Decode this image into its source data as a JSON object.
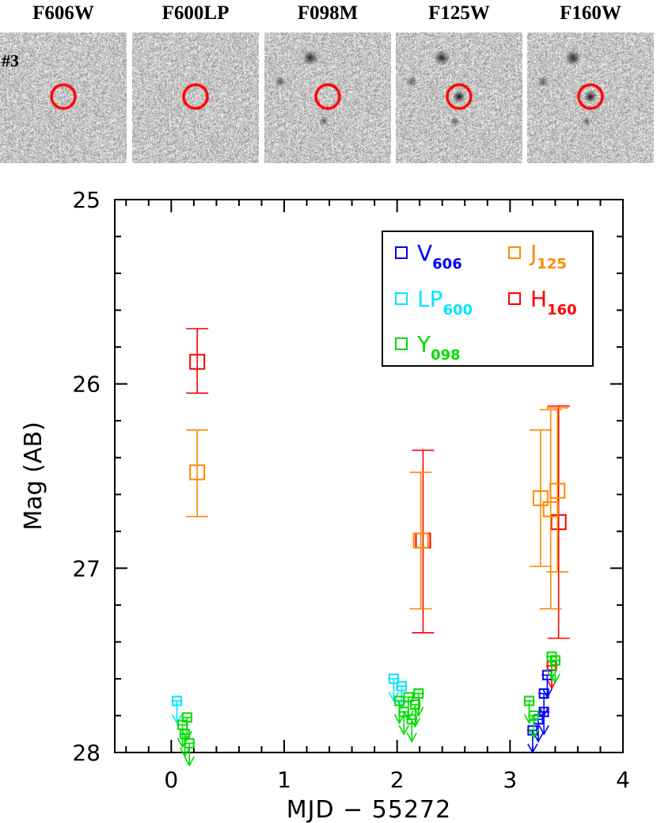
{
  "object_label": "#3",
  "stamps": [
    {
      "filter": "F606W",
      "detected": false
    },
    {
      "filter": "F600LP",
      "detected": false
    },
    {
      "filter": "F098M",
      "detected": false
    },
    {
      "filter": "F125W",
      "detected": true
    },
    {
      "filter": "F160W",
      "detected": true
    }
  ],
  "colors": {
    "marker_circle": "#ff0000",
    "V606": "#0000ff",
    "LP600": "#00e5ff",
    "Y098": "#00dd00",
    "J125": "#ff8800",
    "H160": "#ff0000"
  },
  "chart_data": {
    "type": "scatter",
    "xlabel": "MJD − 55272",
    "ylabel": "Mag (AB)",
    "xlim": [
      -0.5,
      4
    ],
    "ylim": [
      28,
      25
    ],
    "y_inverted": true,
    "xticks": [
      0,
      1,
      2,
      3,
      4
    ],
    "yticks": [
      25,
      26,
      27,
      28
    ],
    "legend": {
      "position": "top-right",
      "entries": [
        {
          "key": "V606",
          "base": "V",
          "sub": "606"
        },
        {
          "key": "J125",
          "base": "J",
          "sub": "125"
        },
        {
          "key": "LP600",
          "base": "LP",
          "sub": "600"
        },
        {
          "key": "H160",
          "base": "H",
          "sub": "160"
        },
        {
          "key": "Y098",
          "base": "Y",
          "sub": "098"
        }
      ]
    },
    "series": [
      {
        "name": "H160",
        "key": "H160",
        "points": [
          {
            "x": 0.23,
            "y": 25.88,
            "err": [
              25.7,
              26.05
            ]
          },
          {
            "x": 2.23,
            "y": 26.85,
            "err": [
              26.36,
              27.35
            ]
          },
          {
            "x": 3.43,
            "y": 26.75,
            "err": [
              26.12,
              27.38
            ]
          },
          {
            "x": 3.37,
            "y": 27.53,
            "limit": true
          }
        ]
      },
      {
        "name": "J125",
        "key": "J125",
        "points": [
          {
            "x": 0.23,
            "y": 26.48,
            "err": [
              26.25,
              26.72
            ]
          },
          {
            "x": 2.21,
            "y": 26.85,
            "err": [
              26.48,
              27.22
            ]
          },
          {
            "x": 3.27,
            "y": 26.62,
            "err": [
              26.25,
              26.99
            ]
          },
          {
            "x": 3.36,
            "y": 26.68,
            "err": [
              26.14,
              27.22
            ]
          },
          {
            "x": 3.42,
            "y": 26.58,
            "err": [
              26.13,
              27.02
            ]
          }
        ]
      },
      {
        "name": "V606",
        "key": "V606",
        "limit": true,
        "points": [
          {
            "x": 3.2,
            "y": 27.88
          },
          {
            "x": 3.25,
            "y": 27.82
          },
          {
            "x": 3.3,
            "y": 27.78
          },
          {
            "x": 3.3,
            "y": 27.68
          },
          {
            "x": 3.33,
            "y": 27.58
          }
        ]
      },
      {
        "name": "LP600",
        "key": "LP600",
        "limit": true,
        "points": [
          {
            "x": 0.05,
            "y": 27.72
          },
          {
            "x": 1.97,
            "y": 27.6
          },
          {
            "x": 2.04,
            "y": 27.64
          }
        ]
      },
      {
        "name": "Y098",
        "key": "Y098",
        "limit": true,
        "points": [
          {
            "x": 0.1,
            "y": 27.85
          },
          {
            "x": 0.12,
            "y": 27.9
          },
          {
            "x": 0.14,
            "y": 27.81
          },
          {
            "x": 0.16,
            "y": 27.95
          },
          {
            "x": 2.02,
            "y": 27.72
          },
          {
            "x": 2.06,
            "y": 27.78
          },
          {
            "x": 2.1,
            "y": 27.7
          },
          {
            "x": 2.13,
            "y": 27.82
          },
          {
            "x": 2.16,
            "y": 27.74
          },
          {
            "x": 2.19,
            "y": 27.68
          },
          {
            "x": 3.17,
            "y": 27.72
          },
          {
            "x": 3.21,
            "y": 27.8
          },
          {
            "x": 3.37,
            "y": 27.48
          },
          {
            "x": 3.4,
            "y": 27.5
          }
        ]
      }
    ]
  }
}
